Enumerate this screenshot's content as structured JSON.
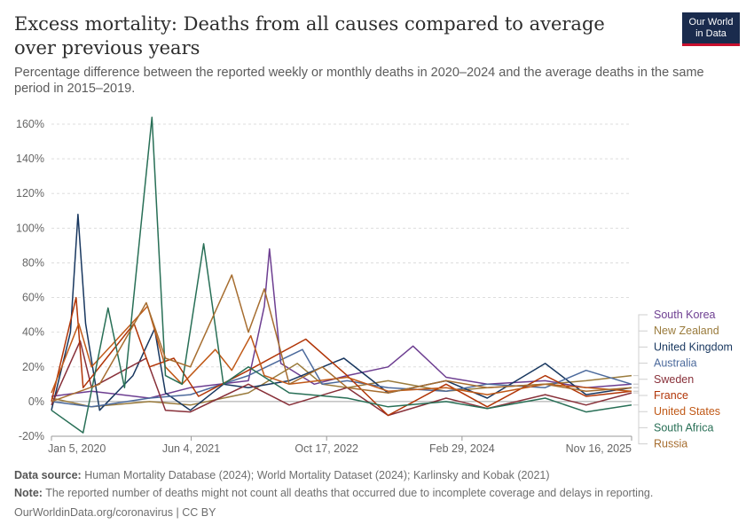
{
  "header": {
    "title": "Excess mortality: Deaths from all causes compared to average over previous years",
    "subtitle": "Percentage difference between the reported weekly or monthly deaths in 2020–2024 and the average deaths in the same period in 2015–2019."
  },
  "logo": {
    "line1": "Our World",
    "line2": "in Data",
    "bg_color": "#1a2b4d",
    "accent_color": "#c8102e"
  },
  "footer": {
    "source_label": "Data source:",
    "source_text": "Human Mortality Database (2024); World Mortality Dataset (2024); Karlinsky and Kobak (2021)",
    "note_label": "Note:",
    "note_text": "The reported number of deaths might not count all deaths that occurred due to incomplete coverage and delays in reporting.",
    "credit": "OurWorldinData.org/coronavirus | CC BY"
  },
  "chart_data": {
    "type": "line",
    "y_tick_labels": [
      "-20%",
      "0%",
      "20%",
      "40%",
      "60%",
      "80%",
      "100%",
      "120%",
      "140%",
      "160%"
    ],
    "y_ticks": [
      -20,
      0,
      20,
      40,
      60,
      80,
      100,
      120,
      140,
      160
    ],
    "ylim": [
      -20,
      160
    ],
    "x_tick_labels": [
      "Jan 5, 2020",
      "Jun 4, 2021",
      "Oct 17, 2022",
      "Feb 29, 2024",
      "Nov 16, 2025"
    ],
    "x_ticks": [
      "2020-01-05",
      "2021-06-04",
      "2022-10-17",
      "2024-02-29",
      "2025-11-16"
    ],
    "xlim": [
      "2020-01-05",
      "2025-11-16"
    ],
    "grid": true,
    "legend_position": "right",
    "series": [
      {
        "name": "South Korea",
        "color": "#6d3e91",
        "points": [
          [
            "2020-01-05",
            3
          ],
          [
            "2020-06-01",
            6
          ],
          [
            "2021-01-01",
            2
          ],
          [
            "2021-06-01",
            8
          ],
          [
            "2022-01-01",
            12
          ],
          [
            "2022-03-01",
            55
          ],
          [
            "2022-03-20",
            88
          ],
          [
            "2022-05-01",
            22
          ],
          [
            "2022-09-01",
            10
          ],
          [
            "2023-01-01",
            15
          ],
          [
            "2023-06-01",
            20
          ],
          [
            "2023-09-01",
            32
          ],
          [
            "2024-01-01",
            14
          ],
          [
            "2024-06-01",
            10
          ],
          [
            "2025-01-01",
            12
          ],
          [
            "2025-06-01",
            8
          ],
          [
            "2025-11-16",
            10
          ]
        ]
      },
      {
        "name": "New Zealand",
        "color": "#9a7b3c",
        "points": [
          [
            "2020-01-05",
            2
          ],
          [
            "2020-06-01",
            -3
          ],
          [
            "2021-01-01",
            0
          ],
          [
            "2021-06-01",
            -2
          ],
          [
            "2022-01-01",
            5
          ],
          [
            "2022-07-01",
            22
          ],
          [
            "2022-10-01",
            10
          ],
          [
            "2023-01-01",
            8
          ],
          [
            "2023-06-01",
            12
          ],
          [
            "2024-01-01",
            6
          ],
          [
            "2024-06-01",
            8
          ],
          [
            "2025-01-01",
            10
          ],
          [
            "2025-06-01",
            12
          ],
          [
            "2025-11-16",
            15
          ]
        ]
      },
      {
        "name": "United Kingdom",
        "color": "#18375f",
        "points": [
          [
            "2020-01-05",
            -5
          ],
          [
            "2020-03-15",
            40
          ],
          [
            "2020-04-12",
            108
          ],
          [
            "2020-05-10",
            45
          ],
          [
            "2020-07-01",
            -5
          ],
          [
            "2020-11-01",
            15
          ],
          [
            "2021-01-20",
            42
          ],
          [
            "2021-03-01",
            5
          ],
          [
            "2021-06-01",
            -5
          ],
          [
            "2021-10-01",
            10
          ],
          [
            "2022-01-01",
            8
          ],
          [
            "2022-06-01",
            12
          ],
          [
            "2022-12-20",
            25
          ],
          [
            "2023-06-01",
            5
          ],
          [
            "2024-01-01",
            12
          ],
          [
            "2024-06-01",
            2
          ],
          [
            "2025-01-01",
            22
          ],
          [
            "2025-06-01",
            4
          ],
          [
            "2025-11-16",
            8
          ]
        ]
      },
      {
        "name": "Australia",
        "color": "#4c6a9c",
        "points": [
          [
            "2020-01-05",
            0
          ],
          [
            "2020-06-01",
            -3
          ],
          [
            "2021-01-01",
            2
          ],
          [
            "2021-06-01",
            4
          ],
          [
            "2022-01-01",
            15
          ],
          [
            "2022-07-20",
            30
          ],
          [
            "2022-10-01",
            10
          ],
          [
            "2023-01-01",
            12
          ],
          [
            "2023-06-01",
            8
          ],
          [
            "2024-01-01",
            6
          ],
          [
            "2024-06-01",
            10
          ],
          [
            "2025-01-01",
            8
          ],
          [
            "2025-06-01",
            18
          ],
          [
            "2025-11-16",
            10
          ]
        ]
      },
      {
        "name": "Sweden",
        "color": "#883039",
        "points": [
          [
            "2020-01-05",
            -2
          ],
          [
            "2020-04-20",
            35
          ],
          [
            "2020-06-01",
            8
          ],
          [
            "2020-12-20",
            25
          ],
          [
            "2021-03-01",
            -5
          ],
          [
            "2021-06-01",
            -6
          ],
          [
            "2022-01-01",
            10
          ],
          [
            "2022-06-01",
            -2
          ],
          [
            "2023-01-01",
            8
          ],
          [
            "2023-06-01",
            -8
          ],
          [
            "2024-01-01",
            2
          ],
          [
            "2024-06-01",
            -4
          ],
          [
            "2025-01-01",
            4
          ],
          [
            "2025-06-01",
            -2
          ],
          [
            "2025-11-16",
            5
          ]
        ]
      },
      {
        "name": "France",
        "color": "#b13507",
        "points": [
          [
            "2020-01-05",
            0
          ],
          [
            "2020-04-05",
            60
          ],
          [
            "2020-05-01",
            8
          ],
          [
            "2020-11-05",
            45
          ],
          [
            "2021-01-01",
            20
          ],
          [
            "2021-04-01",
            25
          ],
          [
            "2021-07-01",
            3
          ],
          [
            "2022-01-01",
            18
          ],
          [
            "2022-08-01",
            36
          ],
          [
            "2023-01-01",
            15
          ],
          [
            "2023-06-01",
            -8
          ],
          [
            "2024-01-01",
            10
          ],
          [
            "2024-06-01",
            -3
          ],
          [
            "2025-01-01",
            15
          ],
          [
            "2025-06-01",
            3
          ],
          [
            "2025-11-16",
            6
          ]
        ]
      },
      {
        "name": "United States",
        "color": "#c05917",
        "points": [
          [
            "2020-01-05",
            5
          ],
          [
            "2020-04-15",
            45
          ],
          [
            "2020-06-01",
            20
          ],
          [
            "2020-12-25",
            55
          ],
          [
            "2021-03-01",
            20
          ],
          [
            "2021-05-01",
            10
          ],
          [
            "2021-09-01",
            30
          ],
          [
            "2021-11-01",
            18
          ],
          [
            "2022-01-10",
            38
          ],
          [
            "2022-03-01",
            15
          ],
          [
            "2022-06-01",
            10
          ],
          [
            "2023-01-01",
            14
          ],
          [
            "2023-06-01",
            6
          ],
          [
            "2024-01-01",
            8
          ],
          [
            "2024-06-01",
            4
          ],
          [
            "2025-01-01",
            10
          ],
          [
            "2025-11-16",
            6
          ]
        ]
      },
      {
        "name": "South Africa",
        "color": "#286f56",
        "points": [
          [
            "2020-01-05",
            -5
          ],
          [
            "2020-05-01",
            -18
          ],
          [
            "2020-08-01",
            54
          ],
          [
            "2020-10-01",
            8
          ],
          [
            "2021-01-10",
            164
          ],
          [
            "2021-03-01",
            15
          ],
          [
            "2021-05-01",
            10
          ],
          [
            "2021-07-20",
            91
          ],
          [
            "2021-10-01",
            10
          ],
          [
            "2022-01-01",
            20
          ],
          [
            "2022-06-01",
            5
          ],
          [
            "2023-01-01",
            2
          ],
          [
            "2023-06-01",
            -3
          ],
          [
            "2024-01-01",
            0
          ],
          [
            "2024-06-01",
            -4
          ],
          [
            "2025-01-01",
            2
          ],
          [
            "2025-06-01",
            -6
          ],
          [
            "2025-11-16",
            -2
          ]
        ]
      },
      {
        "name": "Russia",
        "color": "#a66d2f",
        "points": [
          [
            "2020-01-05",
            0
          ],
          [
            "2020-07-01",
            10
          ],
          [
            "2020-12-20",
            57
          ],
          [
            "2021-03-01",
            25
          ],
          [
            "2021-06-01",
            20
          ],
          [
            "2021-11-01",
            73
          ],
          [
            "2022-01-01",
            40
          ],
          [
            "2022-03-01",
            65
          ],
          [
            "2022-06-01",
            10
          ],
          [
            "2022-10-01",
            20
          ],
          [
            "2023-01-01",
            8
          ],
          [
            "2023-06-01",
            5
          ],
          [
            "2024-01-01",
            12
          ],
          [
            "2024-06-01",
            8
          ],
          [
            "2025-01-01",
            10
          ],
          [
            "2025-06-01",
            6
          ],
          [
            "2025-11-16",
            8
          ]
        ]
      }
    ]
  }
}
